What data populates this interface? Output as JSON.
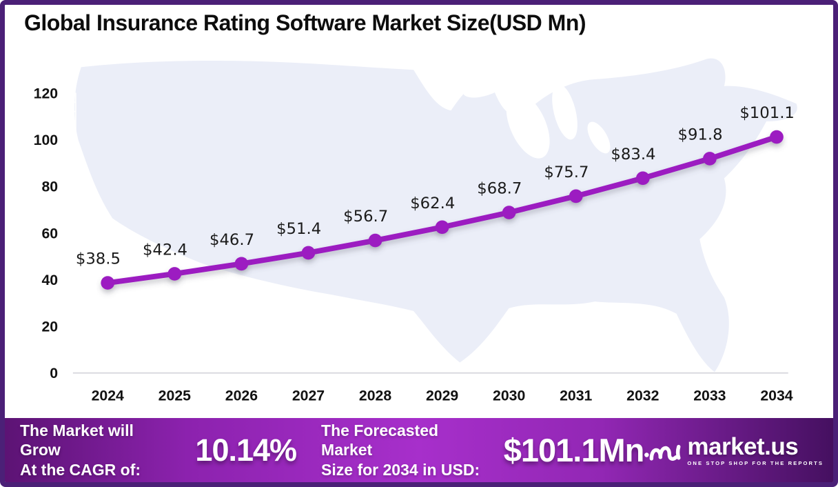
{
  "title": "Global Insurance Rating Software Market Size(USD Mn)",
  "chart_data": {
    "type": "line",
    "title": "Global Insurance Rating Software Market Size(USD Mn)",
    "unit": "USD Mn",
    "categories": [
      "2024",
      "2025",
      "2026",
      "2027",
      "2028",
      "2029",
      "2030",
      "2031",
      "2032",
      "2033",
      "2034"
    ],
    "values": [
      38.5,
      42.4,
      46.7,
      51.4,
      56.7,
      62.4,
      68.7,
      75.7,
      83.4,
      91.8,
      101.1
    ],
    "point_labels": [
      "$38.5",
      "$42.4",
      "$46.7",
      "$51.4",
      "$56.7",
      "$62.4",
      "$68.7",
      "$75.7",
      "$83.4",
      "$91.8",
      "$101.1"
    ],
    "ylim": [
      0,
      120
    ],
    "yticks": [
      0,
      20,
      40,
      60,
      80,
      100,
      120
    ],
    "grid": false,
    "legend": "none",
    "line_color": "#9c1fc1",
    "marker_color": "#9c1fc1"
  },
  "footer": {
    "cagr_label_line1": "The Market will Grow",
    "cagr_label_line2": "At the CAGR of:",
    "cagr_value": "10.14%",
    "forecast_label_line1": "The Forecasted Market",
    "forecast_label_line2": "Size for 2034 in USD:",
    "forecast_value": "$101.1Mn",
    "brand_name": "market.us",
    "brand_tagline": "ONE STOP SHOP FOR THE REPORTS"
  },
  "colors": {
    "border": "#4b2077",
    "map_fill": "#ebeef8",
    "baseline": "#d8d8de",
    "axis_overlay": "#ffffff",
    "footer_gradient_start": "#5c1374",
    "footer_gradient_mid": "#a72fcb",
    "footer_gradient_end": "#451060"
  }
}
